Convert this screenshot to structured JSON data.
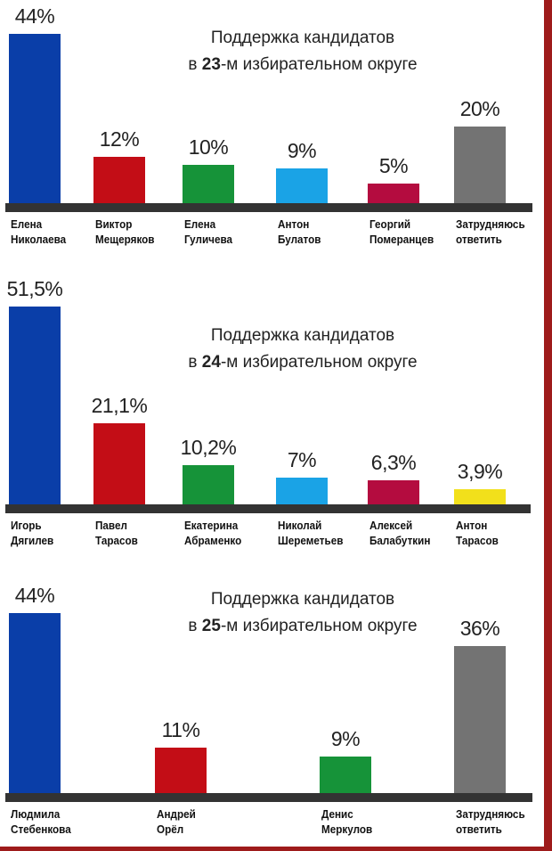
{
  "chart_data": [
    {
      "type": "bar",
      "title_prefix": "Поддержка кандидатов",
      "title_pre": "в ",
      "title_bold": "23",
      "title_post": "-м избирательном округе",
      "categories": [
        "Елена\nНиколаева",
        "Виктор\nМещеряков",
        "Елена\nГуличева",
        "Антон\nБулатов",
        "Георгий\nПомеранцев",
        "Затрудняюсь\nответить"
      ],
      "values": [
        44,
        12,
        10,
        9,
        5,
        20
      ],
      "labels": [
        "44%",
        "12%",
        "10%",
        "9%",
        "5%",
        "20%"
      ],
      "colors": [
        "#0a3ea8",
        "#c30d16",
        "#169339",
        "#1aa3e6",
        "#b40c3f",
        "#737373"
      ],
      "ylim": [
        0,
        44
      ]
    },
    {
      "type": "bar",
      "title_prefix": "Поддержка кандидатов",
      "title_pre": "в ",
      "title_bold": "24",
      "title_post": "-м избирательном округе",
      "categories": [
        "Игорь\nДягилев",
        "Павел\nТарасов",
        "Екатерина\nАбраменко",
        "Николай\nШереметьев",
        "Алексей\nБалабуткин",
        "Антон\nТарасов"
      ],
      "values": [
        51.5,
        21.1,
        10.2,
        7,
        6.3,
        3.9
      ],
      "labels": [
        "51,5%",
        "21,1%",
        "10,2%",
        "7%",
        "6,3%",
        "3,9%"
      ],
      "colors": [
        "#0a3ea8",
        "#c30d16",
        "#169339",
        "#1aa3e6",
        "#b40c3f",
        "#f2e01b"
      ],
      "ylim": [
        0,
        51.5
      ]
    },
    {
      "type": "bar",
      "title_prefix": "Поддержка кандидатов",
      "title_pre": "в ",
      "title_bold": "25",
      "title_post": "-м избирательном округе",
      "categories": [
        "Людмила\nСтебенкова",
        "Андрей\nОрёл",
        "Денис\nМеркулов",
        "Затрудняюсь\nответить"
      ],
      "values": [
        44,
        11,
        9,
        36
      ],
      "labels": [
        "44%",
        "11%",
        "9%",
        "36%"
      ],
      "colors": [
        "#0a3ea8",
        "#c30d16",
        "#169339",
        "#737373"
      ],
      "ylim": [
        0,
        44
      ]
    }
  ],
  "frame_color": "#9e1b1b"
}
